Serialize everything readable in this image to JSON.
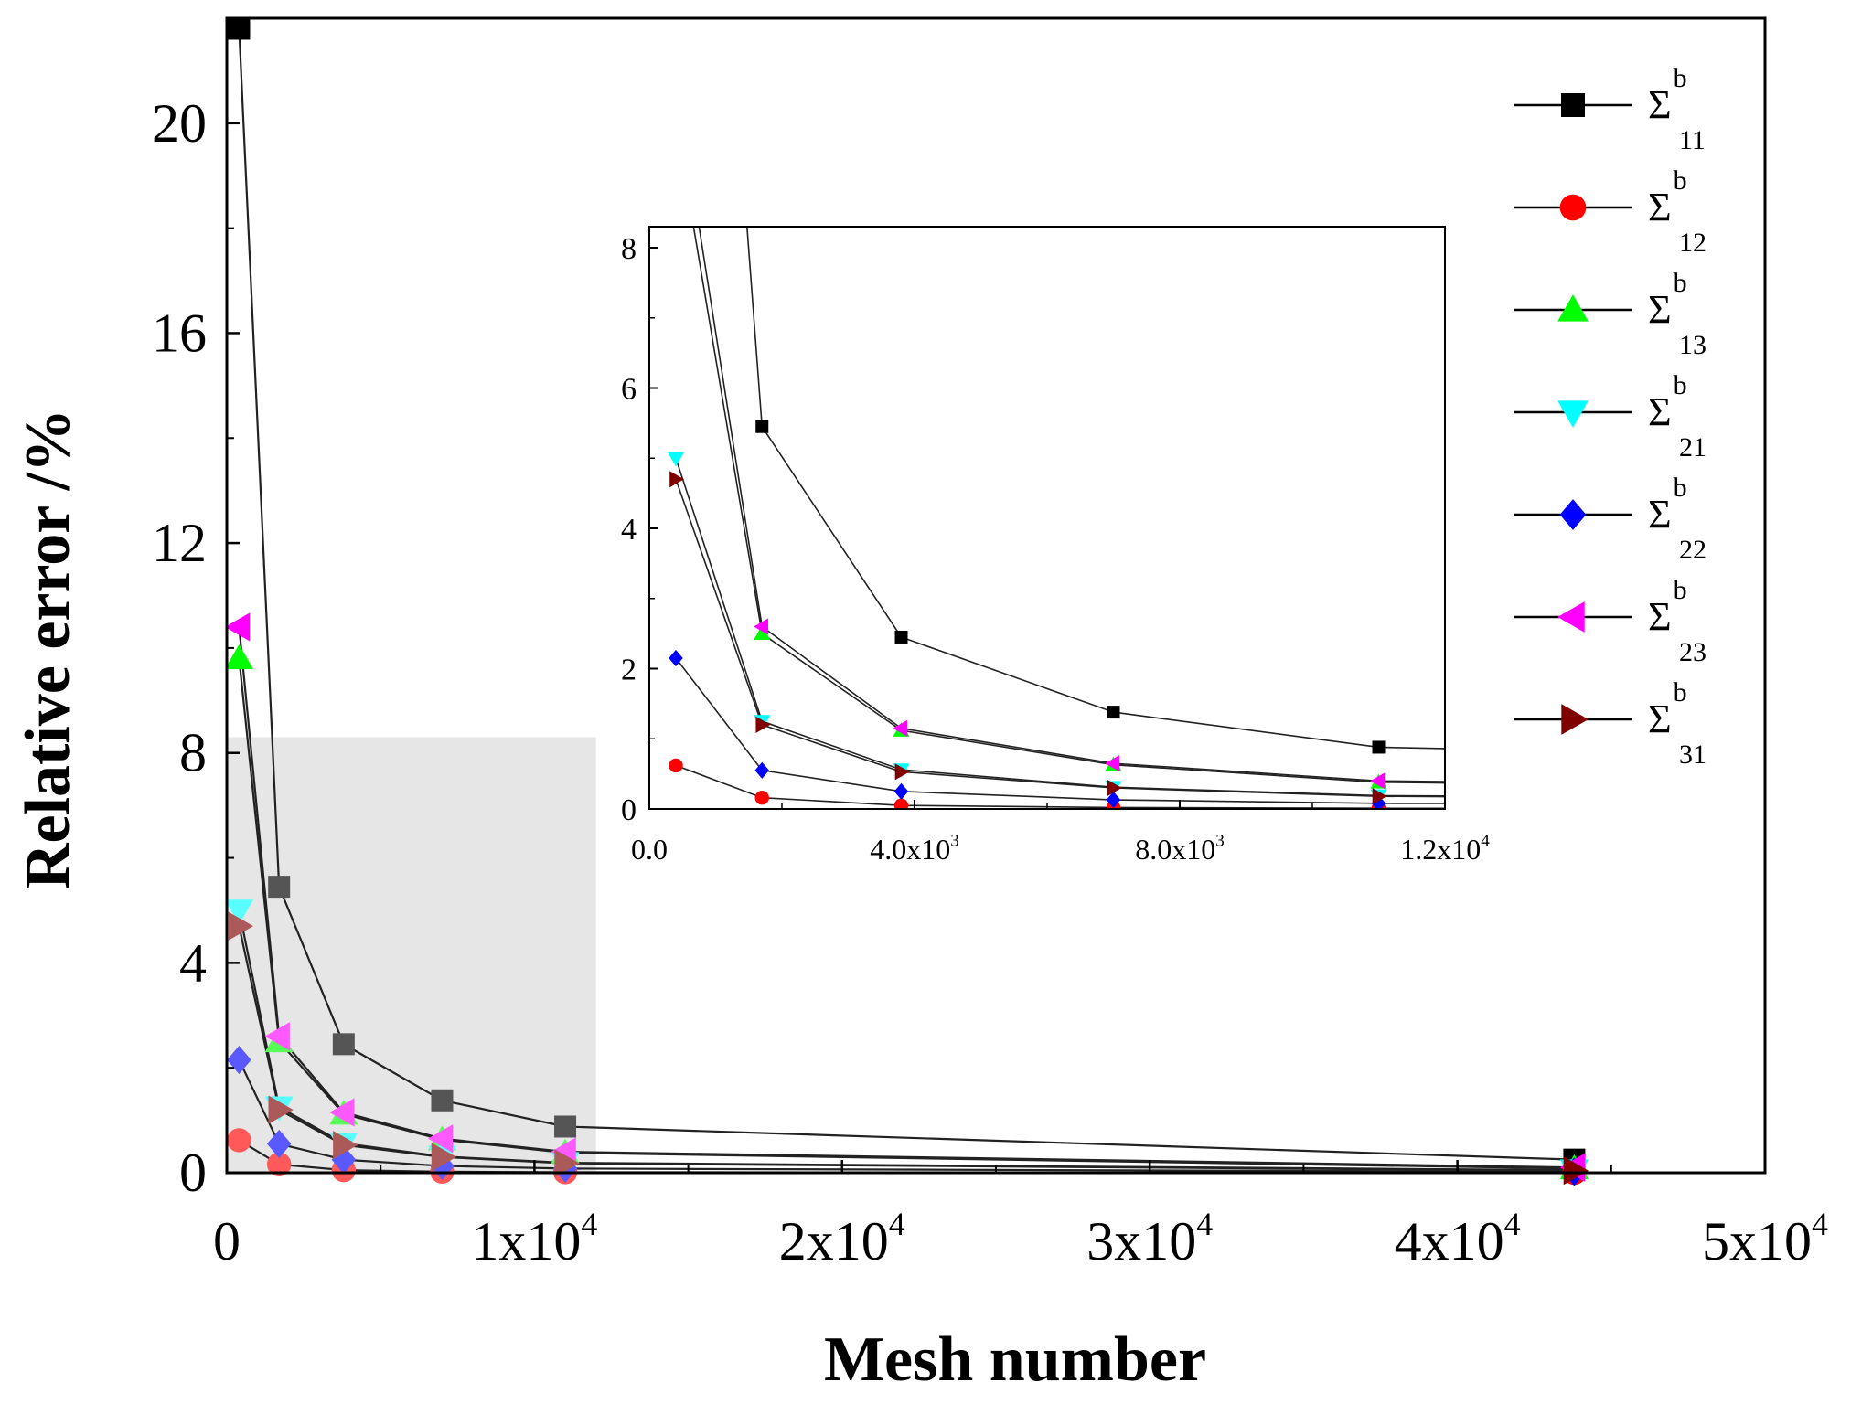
{
  "chart_data": [
    {
      "id": "main",
      "type": "line",
      "title": "",
      "xlabel": "Mesh number",
      "ylabel": "Relative error /%",
      "xlim": [
        0,
        50000
      ],
      "ylim": [
        0,
        22
      ],
      "x_ticks": [
        {
          "value": 0,
          "mantissa": "0",
          "exponent": ""
        },
        {
          "value": 10000,
          "mantissa": "1x10",
          "exponent": "4"
        },
        {
          "value": 20000,
          "mantissa": "2x10",
          "exponent": "4"
        },
        {
          "value": 30000,
          "mantissa": "3x10",
          "exponent": "4"
        },
        {
          "value": 40000,
          "mantissa": "4x10",
          "exponent": "4"
        },
        {
          "value": 50000,
          "mantissa": "5x10",
          "exponent": "4"
        }
      ],
      "y_ticks": [
        {
          "value": 0,
          "label": "0"
        },
        {
          "value": 4,
          "label": "4"
        },
        {
          "value": 8,
          "label": "8"
        },
        {
          "value": 12,
          "label": "12"
        },
        {
          "value": 16,
          "label": "16"
        },
        {
          "value": 20,
          "label": "20"
        }
      ],
      "x": [
        400,
        1700,
        3800,
        7000,
        11000,
        43800
      ],
      "series": [
        {
          "name": "Σ11",
          "symbol": "b",
          "subscript": "11",
          "marker": "square",
          "color": "#000000",
          "values": [
            21.8,
            5.45,
            2.45,
            1.38,
            0.88,
            0.25
          ]
        },
        {
          "name": "Σ12",
          "symbol": "b",
          "subscript": "12",
          "marker": "circle",
          "color": "#ff0000",
          "values": [
            0.62,
            0.16,
            0.05,
            0.02,
            0.01,
            0.0
          ]
        },
        {
          "name": "Σ13",
          "symbol": "b",
          "subscript": "13",
          "marker": "triangle-up",
          "color": "#00ff00",
          "values": [
            9.8,
            2.5,
            1.12,
            0.63,
            0.38,
            0.08
          ]
        },
        {
          "name": "Σ21",
          "symbol": "b",
          "subscript": "21",
          "marker": "triangle-down",
          "color": "#00ffff",
          "values": [
            5.0,
            1.25,
            0.56,
            0.31,
            0.19,
            0.05
          ]
        },
        {
          "name": "Σ22",
          "symbol": "b",
          "subscript": "22",
          "marker": "diamond",
          "color": "#0000ff",
          "values": [
            2.15,
            0.55,
            0.25,
            0.13,
            0.08,
            0.02
          ]
        },
        {
          "name": "Σ23",
          "symbol": "b",
          "subscript": "23",
          "marker": "triangle-left",
          "color": "#ff00ff",
          "values": [
            10.4,
            2.6,
            1.15,
            0.65,
            0.4,
            0.1
          ]
        },
        {
          "name": "Σ31",
          "symbol": "b",
          "subscript": "31",
          "marker": "triangle-right",
          "color": "#800000",
          "values": [
            4.7,
            1.2,
            0.53,
            0.3,
            0.18,
            0.04
          ]
        }
      ],
      "legend": "top-right",
      "highlight_region": {
        "xlim": [
          0,
          12000
        ],
        "ylim": [
          0,
          8.3
        ]
      }
    },
    {
      "id": "inset",
      "type": "line",
      "title": "",
      "xlabel": "",
      "ylabel": "",
      "xlim": [
        0,
        12000
      ],
      "ylim": [
        0,
        8.3
      ],
      "x_ticks": [
        {
          "value": 0,
          "mantissa": "0.0",
          "exponent": ""
        },
        {
          "value": 4000,
          "mantissa": "4.0x10",
          "exponent": "3"
        },
        {
          "value": 8000,
          "mantissa": "8.0x10",
          "exponent": "3"
        },
        {
          "value": 12000,
          "mantissa": "1.2x10",
          "exponent": "4"
        }
      ],
      "y_ticks": [
        {
          "value": 0,
          "label": "0"
        },
        {
          "value": 2,
          "label": "2"
        },
        {
          "value": 4,
          "label": "4"
        },
        {
          "value": 6,
          "label": "6"
        },
        {
          "value": 8,
          "label": "8"
        }
      ],
      "x": [
        400,
        1700,
        3800,
        7000,
        11000
      ],
      "series_from_main": true
    }
  ]
}
